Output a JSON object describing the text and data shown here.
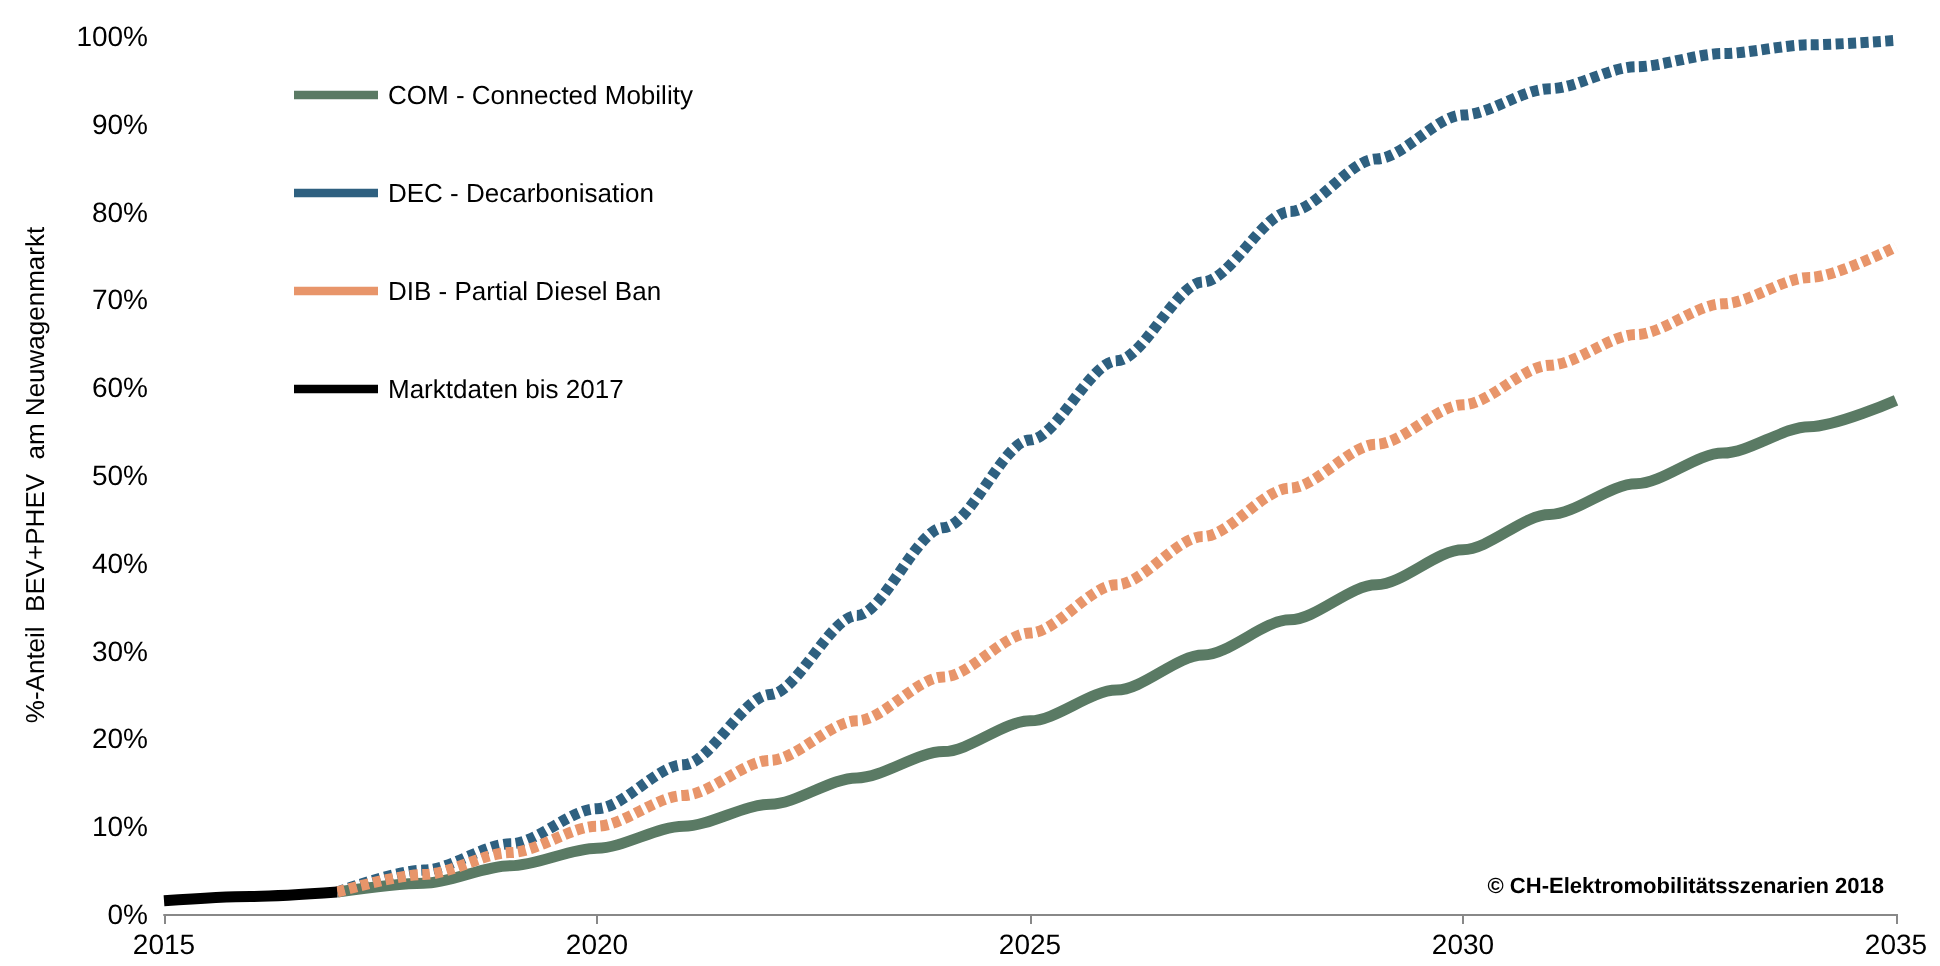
{
  "chart_data": {
    "type": "line",
    "ylabel": "%-Anteil  BEV+PHEV  am Neuwagenmarkt",
    "annotations": [
      "© CH-Elektromobilitätsszenarien 2018"
    ],
    "x": [
      2017,
      2018,
      2019,
      2020,
      2021,
      2022,
      2023,
      2024,
      2025,
      2026,
      2027,
      2028,
      2029,
      2030,
      2031,
      2032,
      2033,
      2034,
      2035
    ],
    "series": [
      {
        "name": "COM - Connected Mobility",
        "color": "#5a7a64",
        "line_style": "solid",
        "values": [
          2.5,
          3.5,
          5.5,
          7.5,
          10,
          12.5,
          15.5,
          18.5,
          22,
          25.5,
          29.5,
          33.5,
          37.5,
          41.5,
          45.5,
          49,
          52.5,
          55.5,
          58.5
        ]
      },
      {
        "name": "DEC - Decarbonisation",
        "color": "#2e6080",
        "line_style": "dashed",
        "values": [
          2.5,
          5,
          8,
          12,
          17,
          25,
          34,
          44,
          54,
          63,
          72,
          80,
          86,
          91,
          94,
          96.5,
          98,
          99,
          99.5
        ]
      },
      {
        "name": "DIB - Partial Diesel Ban",
        "color": "#e8956a",
        "line_style": "dashed",
        "values": [
          2.5,
          4.5,
          7,
          10,
          13.5,
          17.5,
          22,
          27,
          32,
          37.5,
          43,
          48.5,
          53.5,
          58,
          62.5,
          66,
          69.5,
          72.5,
          76
        ]
      },
      {
        "name": "Marktdaten bis 2017",
        "color": "#000000",
        "line_style": "solid",
        "x": [
          2015,
          2016,
          2017
        ],
        "values": [
          1.5,
          2,
          2.5
        ]
      }
    ],
    "xlim": [
      2015,
      2035
    ],
    "xticks": [
      2015,
      2020,
      2025,
      2030,
      2035
    ],
    "ylim": [
      0,
      100
    ],
    "yticks": [
      {
        "value": 0,
        "label": "0%"
      },
      {
        "value": 10,
        "label": "10%"
      },
      {
        "value": 20,
        "label": "20%"
      },
      {
        "value": 30,
        "label": "30%"
      },
      {
        "value": 40,
        "label": "40%"
      },
      {
        "value": 50,
        "label": "50%"
      },
      {
        "value": 60,
        "label": "60%"
      },
      {
        "value": 70,
        "label": "70%"
      },
      {
        "value": 80,
        "label": "80%"
      },
      {
        "value": 90,
        "label": "90%"
      },
      {
        "value": 100,
        "label": "100%"
      }
    ],
    "grid": false,
    "legend": "top left",
    "marker": "none"
  }
}
